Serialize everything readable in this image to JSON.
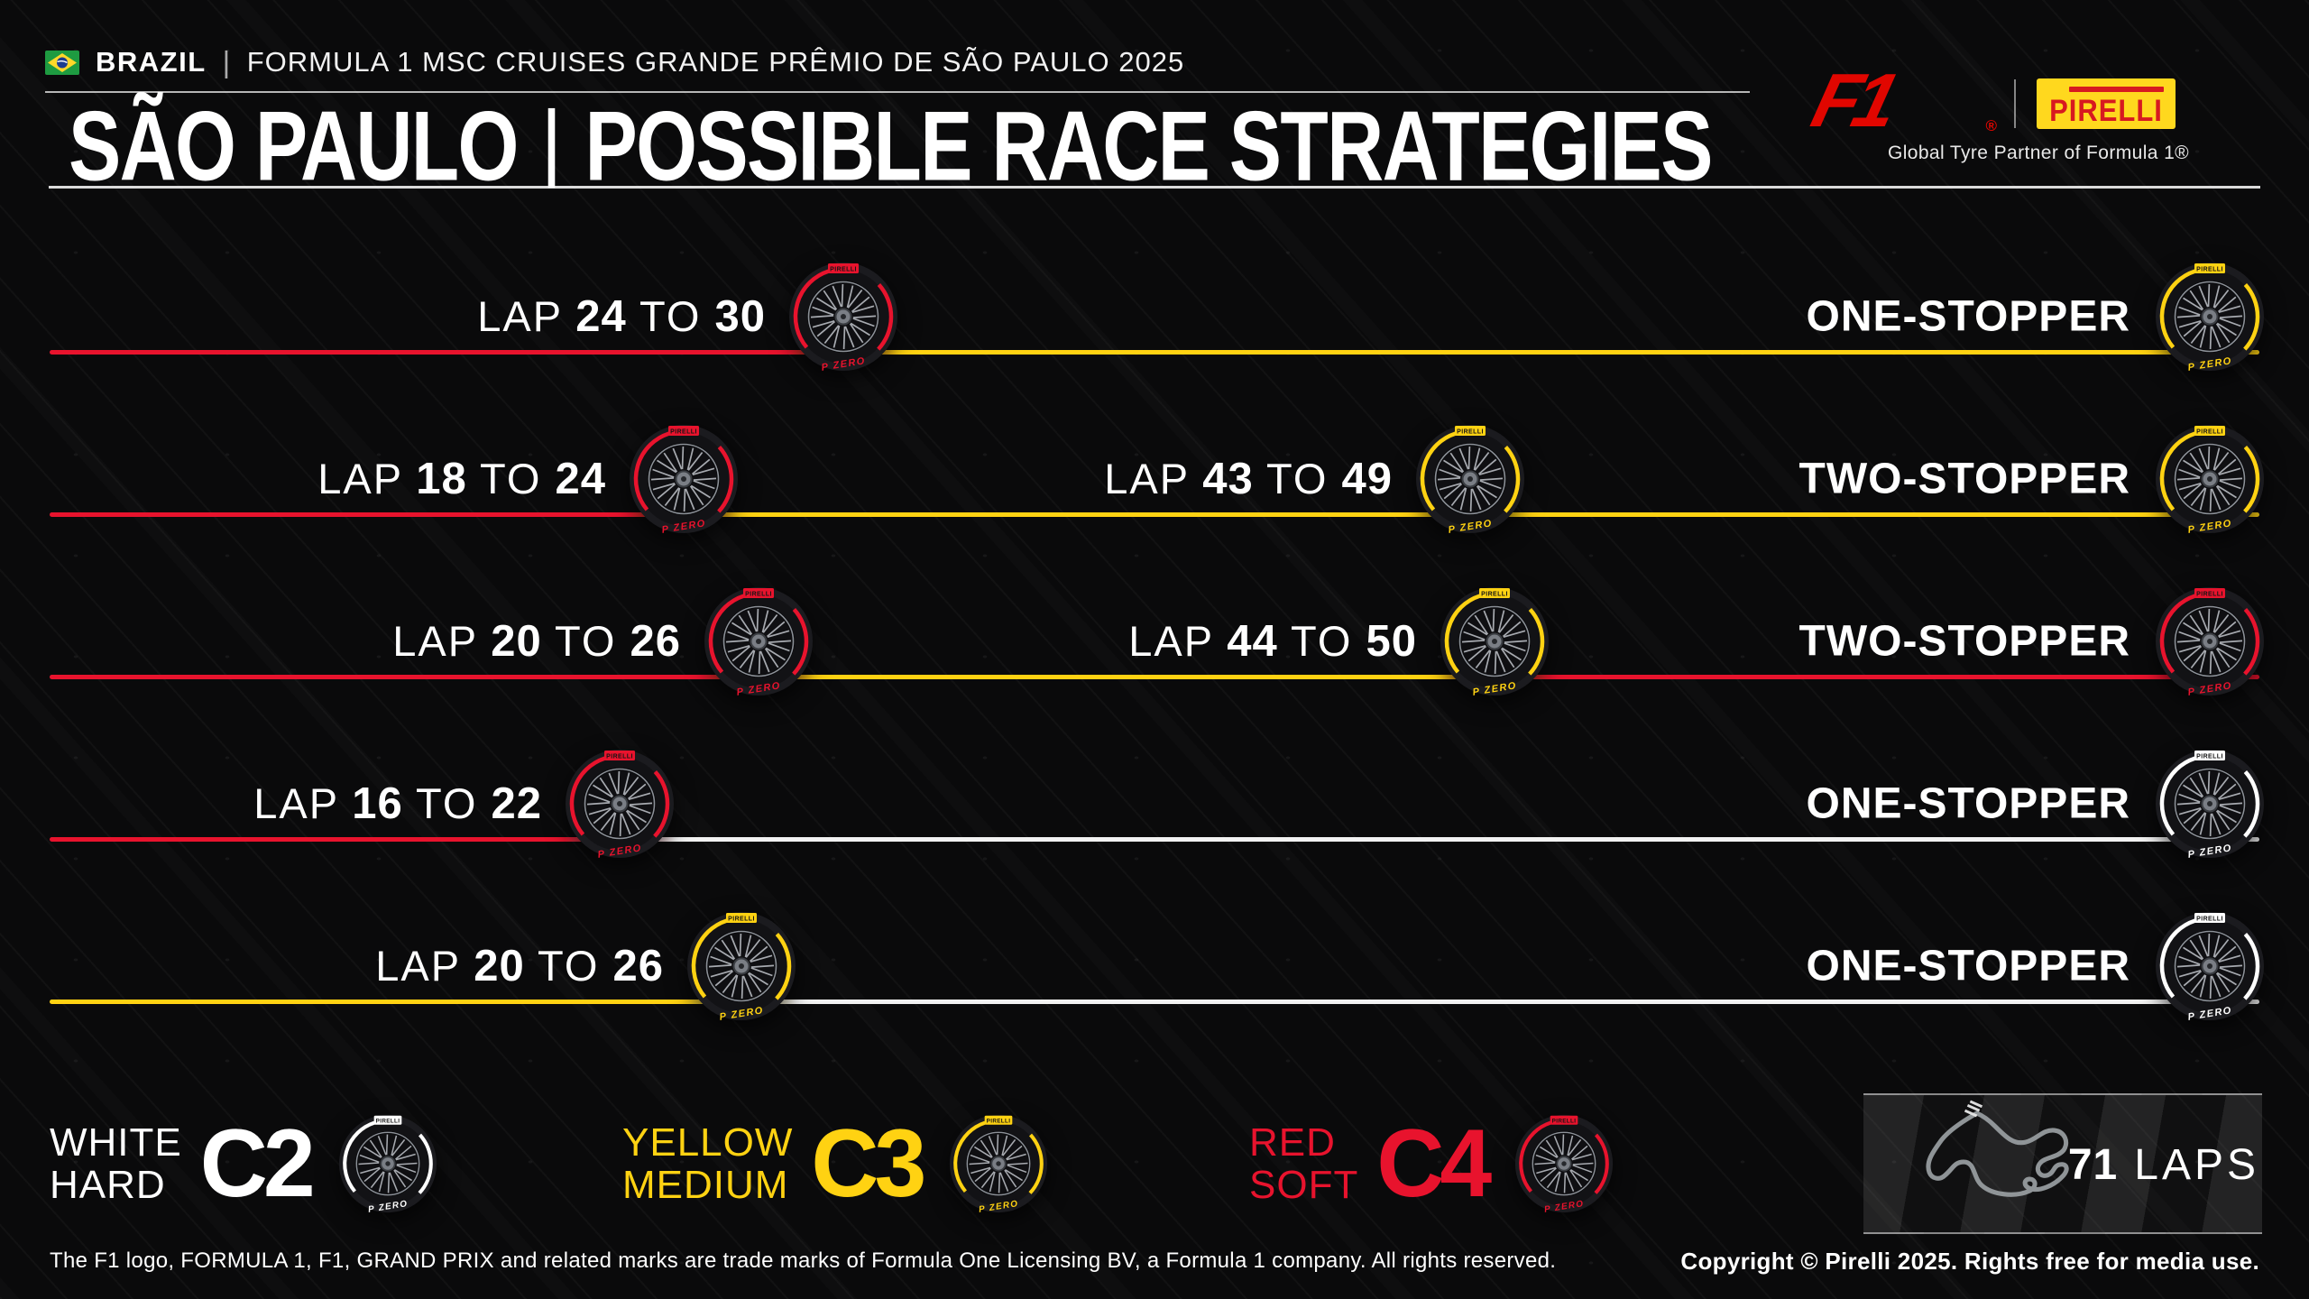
{
  "header": {
    "country": "BRAZIL",
    "separator": "|",
    "event_title": "FORMULA 1 MSC CRUISES GRANDE PRÊMIO DE SÃO PAULO 2025",
    "page_title_left": "SÃO PAULO",
    "page_title_right": "POSSIBLE RACE STRATEGIES",
    "f1_logo_text": "F1",
    "registered_mark": "®",
    "pirelli_logo_text": "PIRELLI",
    "partner_text": "Global Tyre Partner of Formula 1®"
  },
  "labels": {
    "lap": "LAP",
    "to": "TO"
  },
  "compounds": {
    "hard": {
      "code": "C2",
      "color_name": "WHITE",
      "name": "HARD",
      "color": "#ffffff"
    },
    "medium": {
      "code": "C3",
      "color_name": "YELLOW",
      "name": "MEDIUM",
      "color": "#ffd212"
    },
    "soft": {
      "code": "C4",
      "color_name": "RED",
      "name": "SOFT",
      "color": "#e8132d"
    }
  },
  "legend_order": [
    "hard",
    "medium",
    "soft"
  ],
  "tyre_branding": {
    "top": "PIRELLI",
    "bottom": "P ZERO"
  },
  "strategies": [
    {
      "result": "ONE-STOPPER",
      "stints": [
        "soft",
        "medium"
      ],
      "stops": [
        {
          "lap_from": "24",
          "lap_to": "30",
          "pct": 35.9
        }
      ]
    },
    {
      "result": "TWO-STOPPER",
      "stints": [
        "soft",
        "medium",
        "medium"
      ],
      "stops": [
        {
          "lap_from": "18",
          "lap_to": "24",
          "pct": 28.7
        },
        {
          "lap_from": "43",
          "lap_to": "49",
          "pct": 64.3
        }
      ]
    },
    {
      "result": "TWO-STOPPER",
      "stints": [
        "soft",
        "medium",
        "soft"
      ],
      "stops": [
        {
          "lap_from": "20",
          "lap_to": "26",
          "pct": 32.1
        },
        {
          "lap_from": "44",
          "lap_to": "50",
          "pct": 65.4
        }
      ]
    },
    {
      "result": "ONE-STOPPER",
      "stints": [
        "soft",
        "hard"
      ],
      "stops": [
        {
          "lap_from": "16",
          "lap_to": "22",
          "pct": 25.8
        }
      ]
    },
    {
      "result": "ONE-STOPPER",
      "stints": [
        "medium",
        "hard"
      ],
      "stops": [
        {
          "lap_from": "20",
          "lap_to": "26",
          "pct": 31.3
        }
      ]
    }
  ],
  "race": {
    "laps": "71",
    "laps_label": "LAPS"
  },
  "footer": {
    "left": "The F1 logo, FORMULA 1, F1, GRAND PRIX and related marks are trade marks of Formula One Licensing BV, a Formula 1 company. All rights reserved.",
    "right": "Copyright © Pirelli 2025. Rights free for media use."
  },
  "chart_data": {
    "type": "table",
    "title": "SÃO PAULO | POSSIBLE RACE STRATEGIES",
    "event": "FORMULA 1 MSC CRUISES GRANDE PRÊMIO DE SÃO PAULO 2025",
    "total_laps": 71,
    "legend": [
      {
        "compound": "C2",
        "name": "WHITE HARD"
      },
      {
        "compound": "C3",
        "name": "YELLOW MEDIUM"
      },
      {
        "compound": "C4",
        "name": "RED SOFT"
      }
    ],
    "strategies": [
      {
        "label": "ONE-STOPPER",
        "stints": [
          "C4 SOFT",
          "C3 MEDIUM"
        ],
        "pit_stops": [
          "LAP 24 TO 30"
        ]
      },
      {
        "label": "TWO-STOPPER",
        "stints": [
          "C4 SOFT",
          "C3 MEDIUM",
          "C3 MEDIUM"
        ],
        "pit_stops": [
          "LAP 18 TO 24",
          "LAP 43 TO 49"
        ]
      },
      {
        "label": "TWO-STOPPER",
        "stints": [
          "C4 SOFT",
          "C3 MEDIUM",
          "C4 SOFT"
        ],
        "pit_stops": [
          "LAP 20 TO 26",
          "LAP 44 TO 50"
        ]
      },
      {
        "label": "ONE-STOPPER",
        "stints": [
          "C4 SOFT",
          "C2 HARD"
        ],
        "pit_stops": [
          "LAP 16 TO 22"
        ]
      },
      {
        "label": "ONE-STOPPER",
        "stints": [
          "C3 MEDIUM",
          "C2 HARD"
        ],
        "pit_stops": [
          "LAP 20 TO 26"
        ]
      }
    ]
  }
}
